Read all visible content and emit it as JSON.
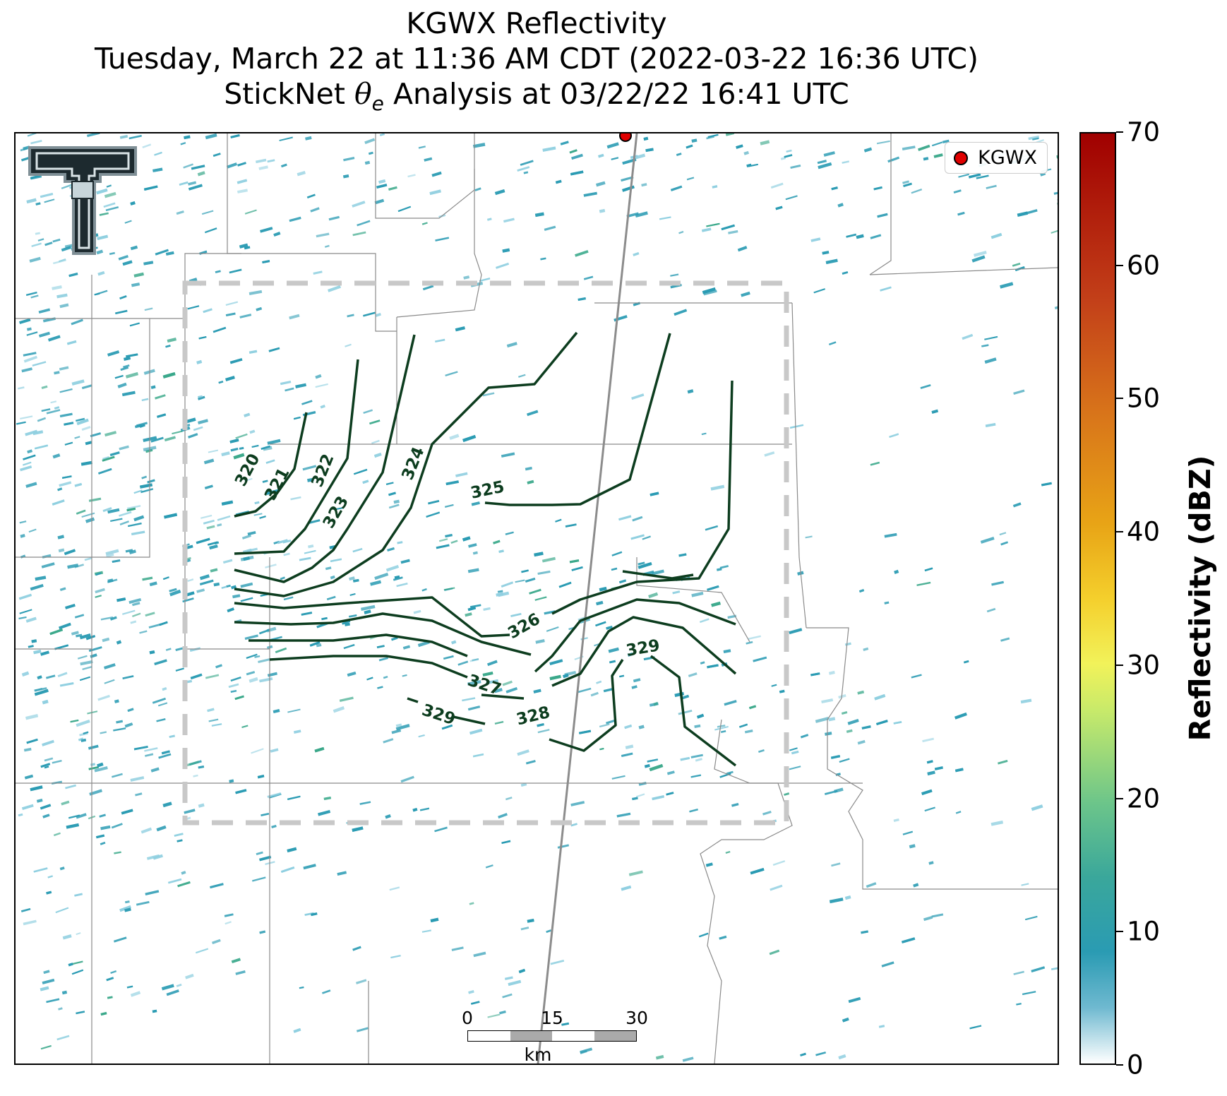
{
  "title": {
    "line1": "KGWX Reflectivity",
    "line2": "Tuesday, March 22 at 11:36 AM CDT (2022-03-22 16:36 UTC)",
    "line3_prefix": "StickNet ",
    "line3_theta": "θ",
    "line3_sub": "e",
    "line3_suffix": " Analysis at 03/22/22 16:41 UTC"
  },
  "legend": {
    "label": "KGWX",
    "marker_color": "#e00000"
  },
  "logo": {
    "name": "Texas Tech Double T"
  },
  "scale_bar": {
    "ticks": [
      "0",
      "15",
      "30"
    ],
    "unit": "km"
  },
  "colorbar": {
    "title": "Reflectivity (dBZ)",
    "ticks": [
      "0",
      "10",
      "20",
      "30",
      "40",
      "50",
      "60",
      "70"
    ],
    "min": 0,
    "max": 70
  },
  "contours": {
    "color": "#0d3d1f",
    "labels": [
      "320",
      "321",
      "322",
      "323",
      "324",
      "325",
      "326",
      "327",
      "328",
      "329",
      "329"
    ]
  },
  "analysis_box": {
    "style": "dashed",
    "color": "#c8c8c8"
  },
  "colors": {
    "radar_primary": "#2a9bb3",
    "radar_light": "#8fcfe0",
    "radar_green": "#3aa88a",
    "county_lines": "#8a8a8a",
    "radar_track": "#888888"
  }
}
